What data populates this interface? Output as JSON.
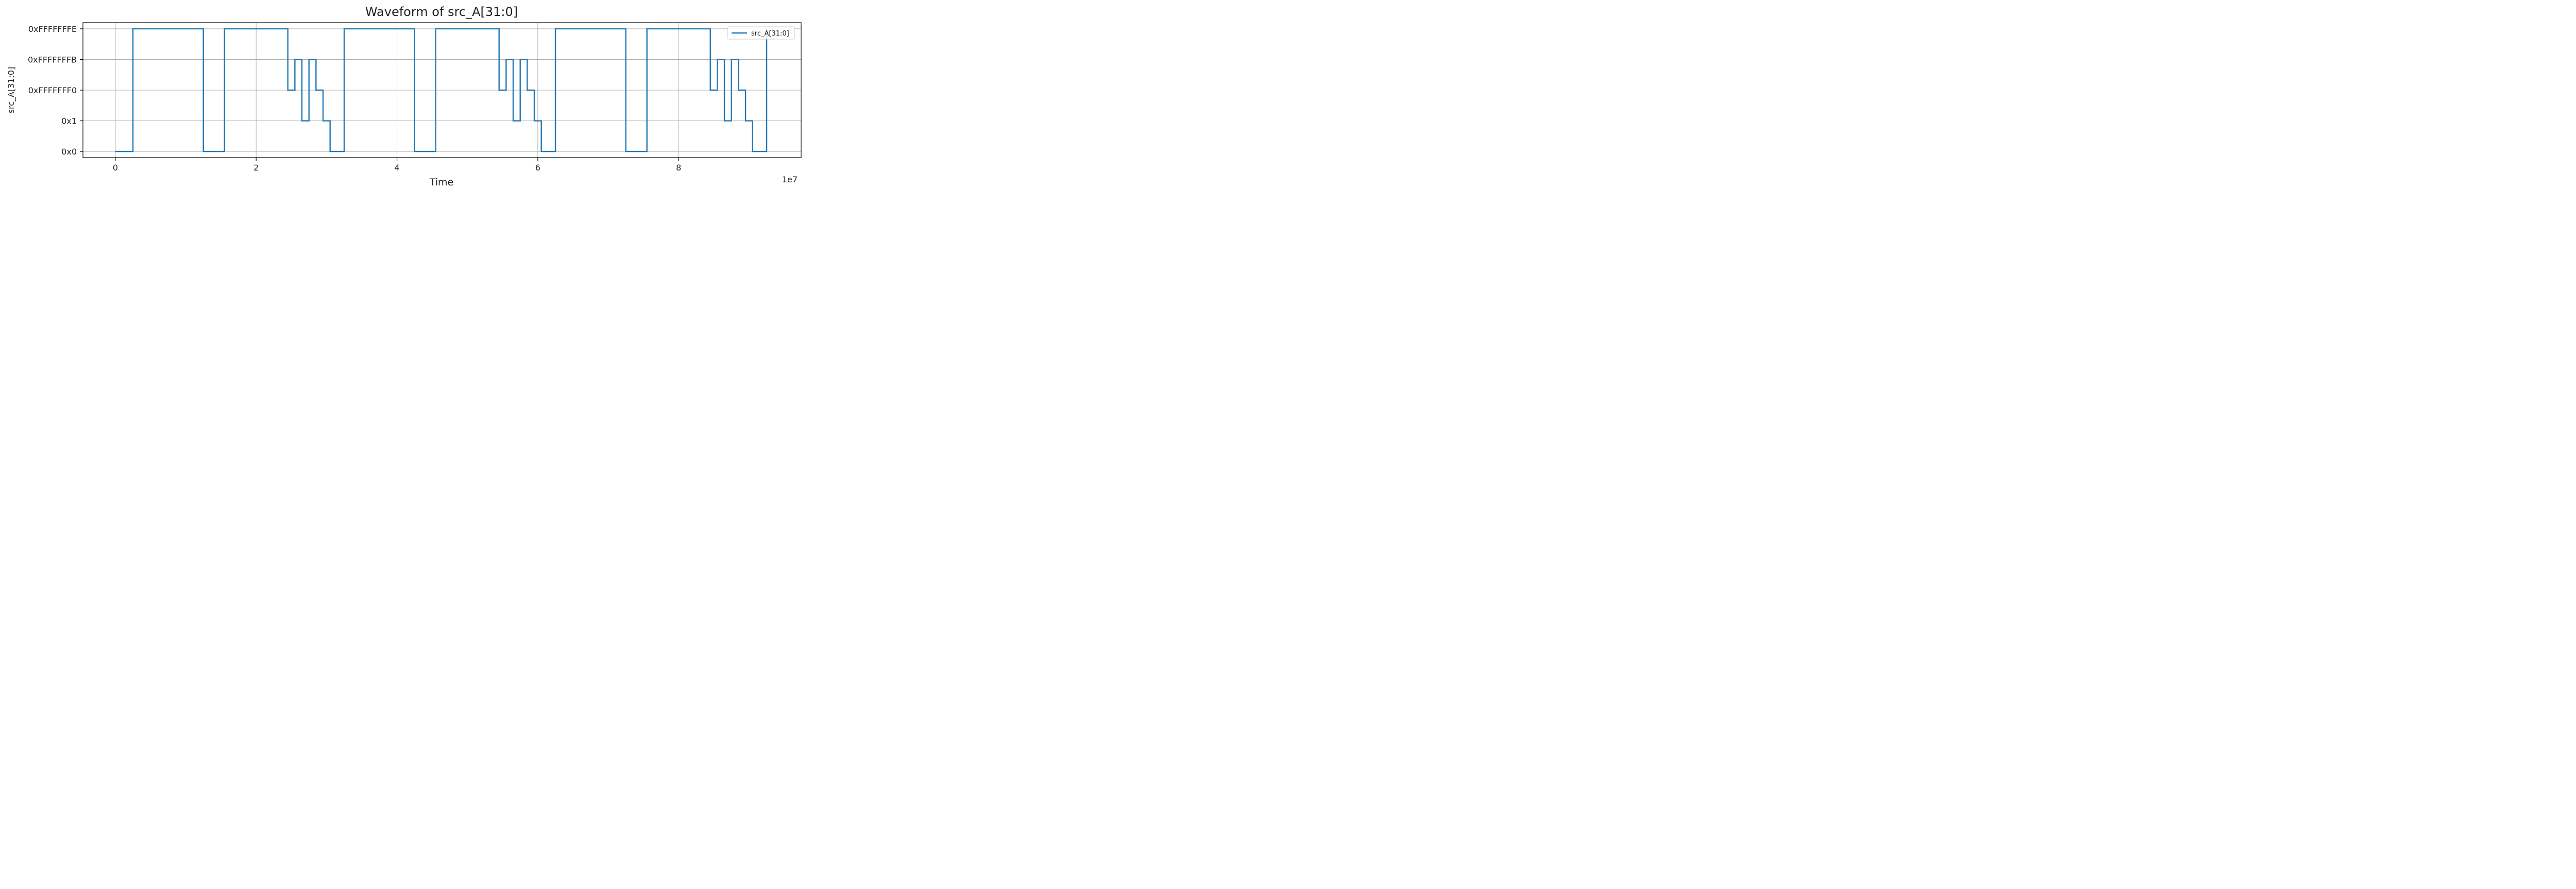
{
  "chart_data": {
    "type": "line",
    "title": "Waveform of src_A[31:0]",
    "xlabel": "Time",
    "ylabel": "src_A[31:0]",
    "x_offset_label": "1e7",
    "x_tick_labels": [
      "0",
      "2",
      "4",
      "6",
      "8"
    ],
    "x_tick_values": [
      0,
      20000000,
      40000000,
      60000000,
      80000000
    ],
    "xlim": [
      -4600000,
      97400000
    ],
    "y_categories": [
      "0x0",
      "0x1",
      "0xFFFFFFF0",
      "0xFFFFFFFB",
      "0xFFFFFFFE"
    ],
    "ylim": [
      -0.2,
      4.2
    ],
    "grid": true,
    "legend_position": "top-right",
    "line_style": "step-post",
    "series": [
      {
        "name": "src_A[31:0]",
        "color": "#1f77b4",
        "points": [
          {
            "x": 0,
            "y": 0
          },
          {
            "x": 2500000,
            "y": 4
          },
          {
            "x": 12500000,
            "y": 0
          },
          {
            "x": 15500000,
            "y": 4
          },
          {
            "x": 24500000,
            "y": 2
          },
          {
            "x": 25500000,
            "y": 3
          },
          {
            "x": 26500000,
            "y": 1
          },
          {
            "x": 27500000,
            "y": 3
          },
          {
            "x": 28500000,
            "y": 2
          },
          {
            "x": 29500000,
            "y": 1
          },
          {
            "x": 30500000,
            "y": 0
          },
          {
            "x": 32500000,
            "y": 4
          },
          {
            "x": 42500000,
            "y": 0
          },
          {
            "x": 45500000,
            "y": 4
          },
          {
            "x": 54500000,
            "y": 2
          },
          {
            "x": 55500000,
            "y": 3
          },
          {
            "x": 56500000,
            "y": 1
          },
          {
            "x": 57500000,
            "y": 3
          },
          {
            "x": 58500000,
            "y": 2
          },
          {
            "x": 59500000,
            "y": 1
          },
          {
            "x": 60500000,
            "y": 0
          },
          {
            "x": 62500000,
            "y": 4
          },
          {
            "x": 72500000,
            "y": 0
          },
          {
            "x": 75500000,
            "y": 4
          },
          {
            "x": 84500000,
            "y": 2
          },
          {
            "x": 85500000,
            "y": 3
          },
          {
            "x": 86500000,
            "y": 1
          },
          {
            "x": 87500000,
            "y": 3
          },
          {
            "x": 88500000,
            "y": 2
          },
          {
            "x": 89500000,
            "y": 1
          },
          {
            "x": 90500000,
            "y": 0
          },
          {
            "x": 92500000,
            "y": 4
          }
        ]
      }
    ]
  }
}
